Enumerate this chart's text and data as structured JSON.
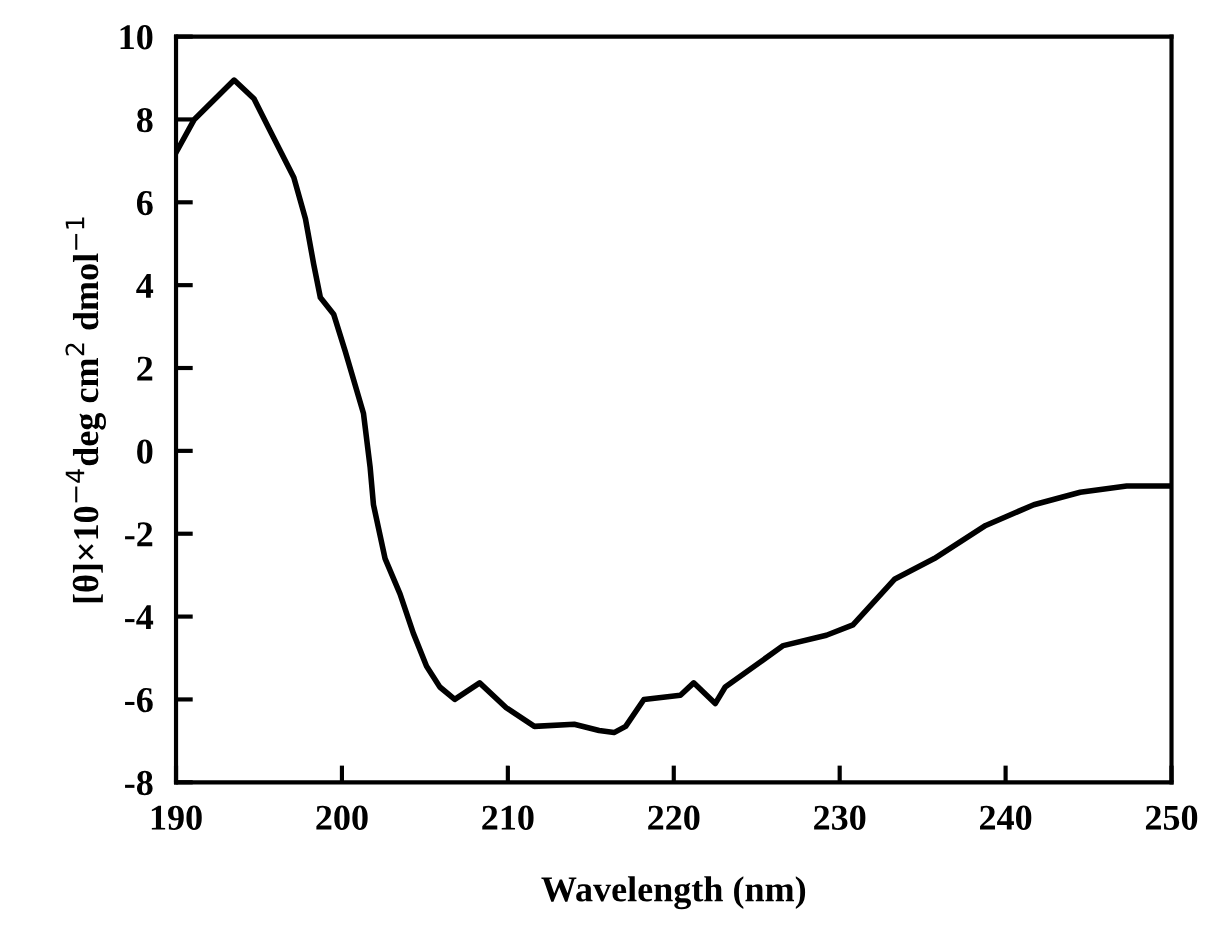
{
  "chart_data": {
    "type": "line",
    "xlabel": "Wavelength (nm)",
    "ylabel": "[θ]×10$^{−4}$deg cm$^{2}$ dmol$^{−1}$",
    "x": [
      190,
      191.1,
      193.5,
      194.7,
      195.7,
      197.1,
      197.8,
      198.3,
      198.7,
      199.5,
      200.2,
      201.3,
      201.7,
      201.9,
      202.6,
      203.5,
      204.3,
      205.1,
      205.9,
      206.8,
      208.3,
      209.9,
      211.6,
      214,
      215.5,
      216.4,
      217.1,
      218.2,
      220.4,
      221.2,
      222.5,
      223.1,
      226.6,
      229.2,
      230.8,
      233.3,
      235.7,
      238.8,
      241.7,
      244.5,
      247.3,
      250
    ],
    "series": [
      {
        "color": "#000000",
        "values": [
          7.2,
          8.0,
          8.95,
          8.5,
          7.7,
          6.6,
          5.6,
          4.5,
          3.7,
          3.3,
          2.4,
          0.9,
          -0.4,
          -1.3,
          -2.6,
          -3.45,
          -4.4,
          -5.2,
          -5.7,
          -6.0,
          -5.6,
          -6.2,
          -6.65,
          -6.6,
          -6.75,
          -6.8,
          -6.65,
          -6.0,
          -5.9,
          -5.6,
          -6.1,
          -5.7,
          -4.7,
          -4.45,
          -4.2,
          -3.1,
          -2.6,
          -1.8,
          -1.3,
          -1.0,
          -0.85,
          -0.85
        ]
      }
    ],
    "xlim": [
      190,
      250
    ],
    "ylim": [
      -8,
      10
    ],
    "xticks": [
      190,
      200,
      210,
      220,
      230,
      240,
      250
    ],
    "yticks": [
      -8,
      -6,
      -4,
      -2,
      0,
      2,
      4,
      6,
      8,
      10
    ],
    "grid": false,
    "legend": false,
    "marker": "none",
    "line_style": "solid"
  }
}
